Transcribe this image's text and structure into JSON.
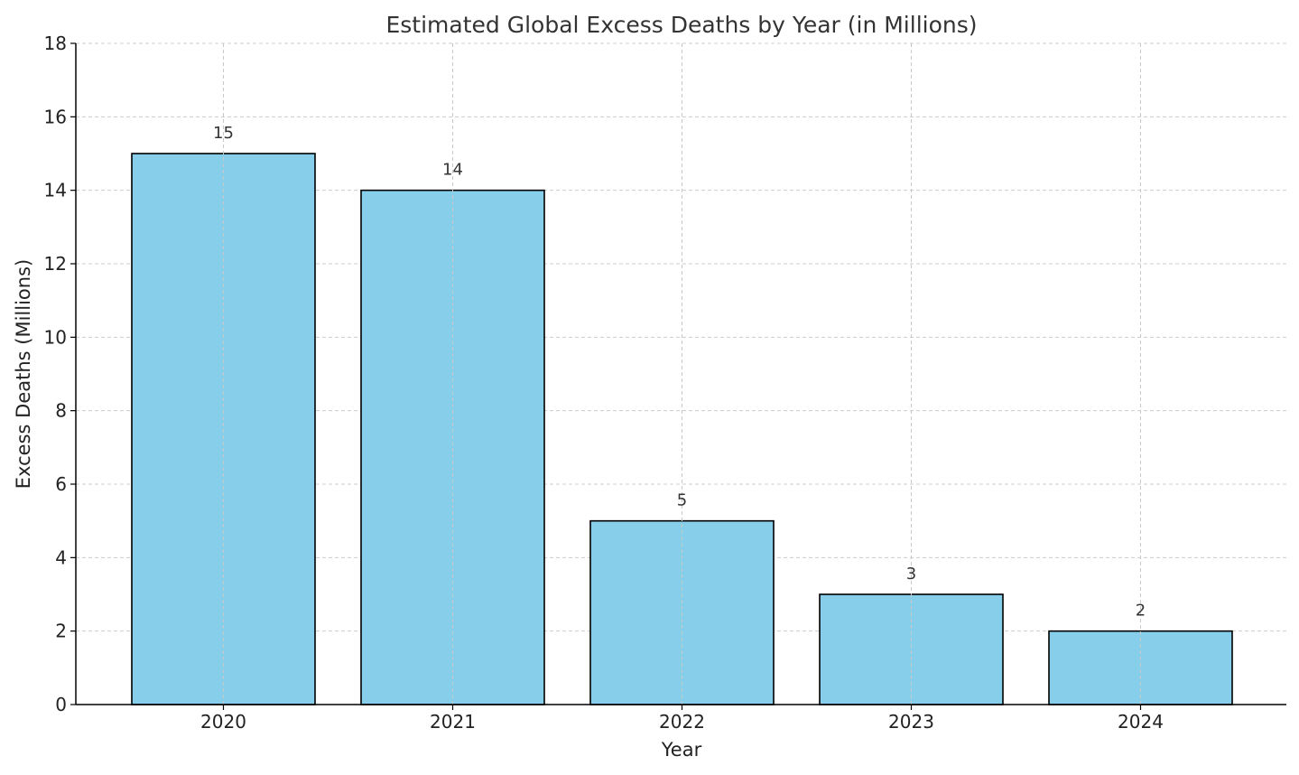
{
  "chart_data": {
    "type": "bar",
    "title": "Estimated Global Excess Deaths by Year (in Millions)",
    "xlabel": "Year",
    "ylabel": "Excess Deaths (Millions)",
    "categories": [
      "2020",
      "2021",
      "2022",
      "2023",
      "2024"
    ],
    "values": [
      15,
      14,
      5,
      3,
      2
    ],
    "data_labels": [
      "15",
      "14",
      "5",
      "3",
      "2"
    ],
    "ylim": [
      0,
      18
    ],
    "yticks": [
      0,
      2,
      4,
      6,
      8,
      10,
      12,
      14,
      16,
      18
    ],
    "ytick_labels": [
      "0",
      "2",
      "4",
      "6",
      "8",
      "10",
      "12",
      "14",
      "16",
      "18"
    ],
    "grid": true,
    "bar_color": "#87CEEB",
    "bar_edge_color": "#000000"
  }
}
